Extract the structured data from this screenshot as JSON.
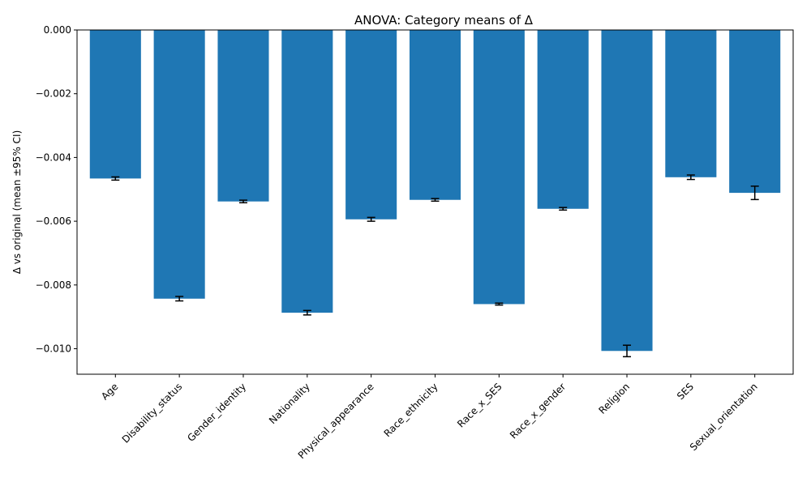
{
  "chart_data": {
    "type": "bar",
    "title": "ANOVA: Category means of Δ",
    "xlabel": "",
    "ylabel": "Δ vs original (mean ±95% CI)",
    "ylim": [
      -0.0108,
      0.0
    ],
    "yticks": [
      0.0,
      -0.002,
      -0.004,
      -0.006,
      -0.008,
      -0.01
    ],
    "ytick_labels": [
      "0.000",
      "−0.002",
      "−0.004",
      "−0.006",
      "−0.008",
      "−0.010"
    ],
    "categories": [
      "Age",
      "Disability_status",
      "Gender_identity",
      "Nationality",
      "Physical_appearance",
      "Race_ethnicity",
      "Race_x_SES",
      "Race_x_gender",
      "Religion",
      "SES",
      "Sexual_orientation"
    ],
    "values": [
      -0.00466,
      -0.00843,
      -0.00538,
      -0.00887,
      -0.00594,
      -0.00533,
      -0.0086,
      -0.00561,
      -0.01007,
      -0.00462,
      -0.00511
    ],
    "ci": [
      5e-05,
      7e-05,
      4e-05,
      7e-05,
      6e-05,
      4e-05,
      3e-05,
      4e-05,
      0.00018,
      7e-05,
      0.00021
    ],
    "grid": false,
    "legend": "none",
    "bar_color": "#1f77b4",
    "error_color": "#000000"
  }
}
